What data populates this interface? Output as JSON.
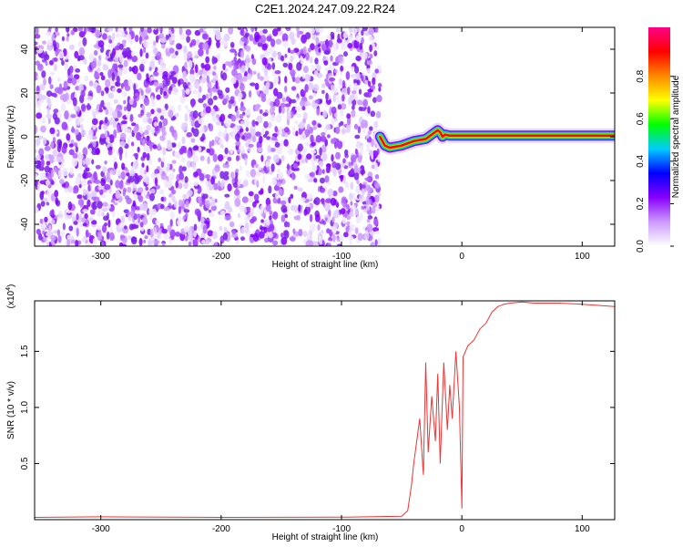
{
  "title": "C2E1.2024.247.09.22.R24",
  "chart_data": [
    {
      "type": "heatmap",
      "xlabel": "Height of straight line (km)",
      "ylabel": "Frequency (Hz)",
      "xlim": [
        -355,
        127
      ],
      "ylim": [
        -50,
        50
      ],
      "xticks": [
        -300,
        -200,
        -100,
        0,
        100
      ],
      "yticks": [
        -40,
        -20,
        0,
        20,
        40
      ],
      "noise_region_end_x": -68,
      "signal_track": {
        "x": [
          -68,
          -64,
          -60,
          -50,
          -40,
          -30,
          -25,
          -20,
          -18,
          -16,
          -14,
          -10,
          0,
          20,
          60,
          100,
          127
        ],
        "y": [
          0,
          -4,
          -5,
          -4,
          -2,
          -1,
          1,
          3,
          2,
          0,
          1,
          0.5,
          0.5,
          0.5,
          0.5,
          0.5,
          0.5
        ]
      },
      "colorbar": {
        "label": "Normalized spectral amplitude",
        "range": [
          0,
          1
        ],
        "ticks": [
          "0.0",
          "0.2",
          "0.4",
          "0.6",
          "0.8"
        ],
        "colors": [
          "#ffffff",
          "#cc99ff",
          "#8800ff",
          "#0000ff",
          "#00ccff",
          "#00ff00",
          "#ffff00",
          "#ff8800",
          "#ff0000",
          "#ff0088"
        ]
      },
      "grid": false
    },
    {
      "type": "line",
      "xlabel": "Height of straight line (km)",
      "ylabel": "SNR (10 * v/v)",
      "scale_label": "(x10",
      "scale_exp": "4",
      "scale_close": ")",
      "xlim": [
        -355,
        127
      ],
      "ylim": [
        0,
        19500
      ],
      "xticks": [
        -300,
        -200,
        -100,
        0,
        100
      ],
      "yticks": [
        "0.5",
        "1.0",
        "1.5"
      ],
      "ytick_values": [
        5000,
        10000,
        15000
      ],
      "series": [
        {
          "color": "#ee3333",
          "x": [
            -355,
            -300,
            -200,
            -100,
            -50,
            -45,
            -42,
            -40,
            -35,
            -32,
            -30,
            -28,
            -25,
            -22,
            -20,
            -18,
            -15,
            -12,
            -10,
            -8,
            -5,
            -2,
            0,
            1,
            5,
            10,
            15,
            20,
            25,
            30,
            35,
            40,
            50,
            60,
            80,
            100,
            127
          ],
          "y": [
            200,
            250,
            200,
            220,
            300,
            800,
            3000,
            5000,
            9000,
            4000,
            14000,
            6000,
            11000,
            7000,
            13000,
            5000,
            14000,
            8000,
            12000,
            9000,
            15000,
            10000,
            1000,
            14500,
            15500,
            16000,
            17000,
            17500,
            18500,
            19000,
            19200,
            19300,
            19400,
            19300,
            19300,
            19200,
            19000
          ]
        }
      ],
      "grid": false
    }
  ]
}
